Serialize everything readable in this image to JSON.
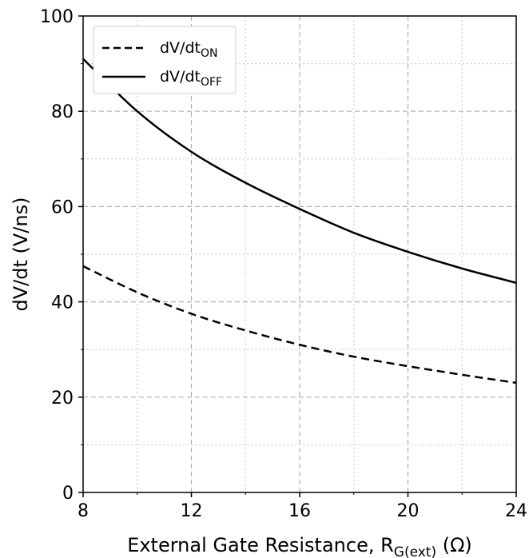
{
  "chart_data": {
    "type": "line",
    "xlabel_main": "External Gate Resistance, R",
    "xlabel_sub": "G(ext)",
    "xlabel_unit": " (Ω)",
    "ylabel": "dV/dt (V/ns)",
    "xlim": [
      8,
      24
    ],
    "ylim": [
      0,
      100
    ],
    "xticks": [
      "8",
      "12",
      "16",
      "20",
      "24"
    ],
    "yticks": [
      "0",
      "20",
      "40",
      "60",
      "80",
      "100"
    ],
    "grid": true,
    "legend_position": "top-left",
    "series": [
      {
        "name_main": "dV/dt",
        "name_sub": "ON",
        "style": "dashed",
        "x": [
          8,
          10,
          12,
          14,
          16,
          18,
          20,
          22,
          24
        ],
        "y": [
          47.5,
          42.0,
          37.5,
          34.0,
          31.0,
          28.5,
          26.5,
          24.7,
          23.0
        ]
      },
      {
        "name_main": "dV/dt",
        "name_sub": "OFF",
        "style": "solid",
        "x": [
          8,
          10,
          12,
          14,
          16,
          18,
          20,
          22,
          24
        ],
        "y": [
          91.0,
          80.0,
          71.5,
          65.0,
          59.5,
          54.5,
          50.5,
          47.0,
          44.0
        ]
      }
    ]
  }
}
